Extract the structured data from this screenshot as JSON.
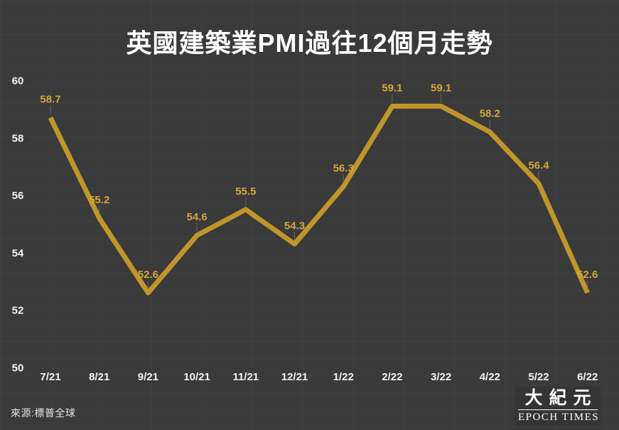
{
  "title": "英國建築業PMI過往12個月走勢",
  "source_note": "來源:標普全球",
  "logo": {
    "cjk": "大紀元",
    "latin": "EPOCH TIMES"
  },
  "colors": {
    "background": "#3a3a3a",
    "line": "#c0962b",
    "value_label": "#d2a63b",
    "axis_label": "#f2f2f2",
    "connector": "#6a6a6a"
  },
  "chart_data": {
    "type": "line",
    "title": "英國建築業PMI過往12個月走勢",
    "categories": [
      "7/21",
      "8/21",
      "9/21",
      "10/21",
      "11/21",
      "12/21",
      "1/22",
      "2/22",
      "3/22",
      "4/22",
      "5/22",
      "6/22"
    ],
    "values": [
      58.7,
      55.2,
      52.6,
      54.6,
      55.5,
      54.3,
      56.3,
      59.1,
      59.1,
      58.2,
      56.4,
      52.6
    ],
    "xlabel": "",
    "ylabel": "",
    "ylim": [
      50,
      60
    ],
    "yticks": [
      60,
      58,
      56,
      54,
      52,
      50
    ],
    "grid": false,
    "legend": "none",
    "data_labels": true
  }
}
